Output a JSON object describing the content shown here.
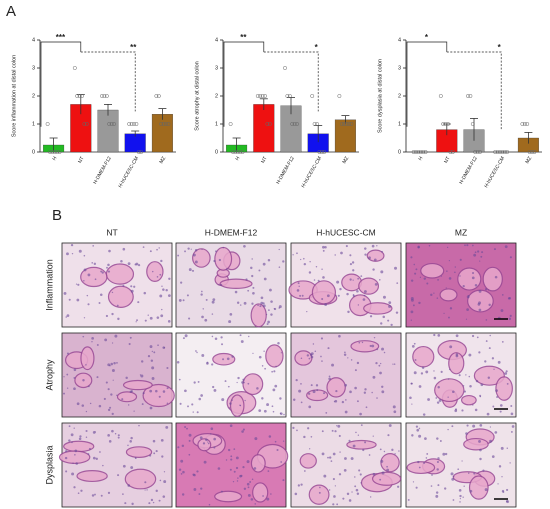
{
  "panel_labels": [
    "A",
    "B"
  ],
  "chart_data": [
    {
      "type": "bar",
      "y_label": "Score inflammation at distal colon",
      "categories": [
        "H",
        "NT",
        "H-DMEM-F12",
        "H-hUCESC-CM",
        "MZ"
      ],
      "values": [
        0.25,
        1.7,
        1.5,
        0.65,
        1.35
      ],
      "errors": [
        0.25,
        0.35,
        0.2,
        0.1,
        0.2
      ],
      "colors": [
        "#22bb22",
        "#ee1111",
        "#999999",
        "#1111ee",
        "#a06a1e"
      ],
      "points": [
        [
          1,
          0,
          0,
          0,
          0,
          0
        ],
        [
          3,
          2,
          2,
          2,
          1,
          1
        ],
        [
          2,
          2,
          2,
          1,
          1,
          1
        ],
        [
          1,
          1,
          1,
          1,
          0,
          0
        ],
        [
          2,
          2,
          1,
          1,
          1,
          1
        ]
      ],
      "ylim": [
        0,
        4
      ],
      "yticks": [
        0,
        1,
        2,
        3,
        4
      ],
      "annotations": [
        "***",
        "**"
      ]
    },
    {
      "type": "bar",
      "y_label": "Score atrophy at distal colon",
      "categories": [
        "H",
        "NT",
        "H-DMEM-F12",
        "H-hUCESC-CM",
        "MZ"
      ],
      "values": [
        0.25,
        1.7,
        1.65,
        0.65,
        1.15
      ],
      "errors": [
        0.25,
        0.2,
        0.3,
        0.3,
        0.15
      ],
      "colors": [
        "#22bb22",
        "#ee1111",
        "#999999",
        "#1111ee",
        "#a06a1e"
      ],
      "points": [
        [
          1,
          0,
          0,
          0,
          0,
          0
        ],
        [
          2,
          2,
          2,
          2,
          1,
          1
        ],
        [
          3,
          2,
          2,
          1,
          1,
          1
        ],
        [
          2,
          1,
          1,
          0,
          0,
          0
        ],
        [
          2,
          1,
          1,
          1,
          1,
          1
        ]
      ],
      "ylim": [
        0,
        4
      ],
      "yticks": [
        0,
        1,
        2,
        3,
        4
      ],
      "annotations": [
        "**",
        "*"
      ]
    },
    {
      "type": "bar",
      "y_label": "Score dysplasia at distal colon",
      "categories": [
        "H",
        "NT",
        "H-DMEM-F12",
        "H-hUCESC-CM",
        "MZ"
      ],
      "values": [
        0,
        0.8,
        0.8,
        0,
        0.5
      ],
      "errors": [
        0,
        0.2,
        0.4,
        0,
        0.2
      ],
      "colors": [
        "#22bb22",
        "#ee1111",
        "#999999",
        "#1111ee",
        "#a06a1e"
      ],
      "points": [
        [
          0,
          0,
          0,
          0,
          0,
          0
        ],
        [
          2,
          1,
          1,
          1,
          0,
          0
        ],
        [
          2,
          2,
          1,
          0,
          0,
          0
        ],
        [
          0,
          0,
          0,
          0,
          0,
          0
        ],
        [
          1,
          1,
          1,
          0,
          0,
          0
        ]
      ],
      "ylim": [
        0,
        4
      ],
      "yticks": [
        0,
        1,
        2,
        3,
        4
      ],
      "annotations": [
        "*",
        "*"
      ]
    }
  ],
  "image_grid": {
    "columns": [
      "NT",
      "H-DMEM-F12",
      "H-hUCESC-CM",
      "MZ"
    ],
    "rows": [
      "Inflammation",
      "Atrophy",
      "Dysplasia"
    ]
  }
}
